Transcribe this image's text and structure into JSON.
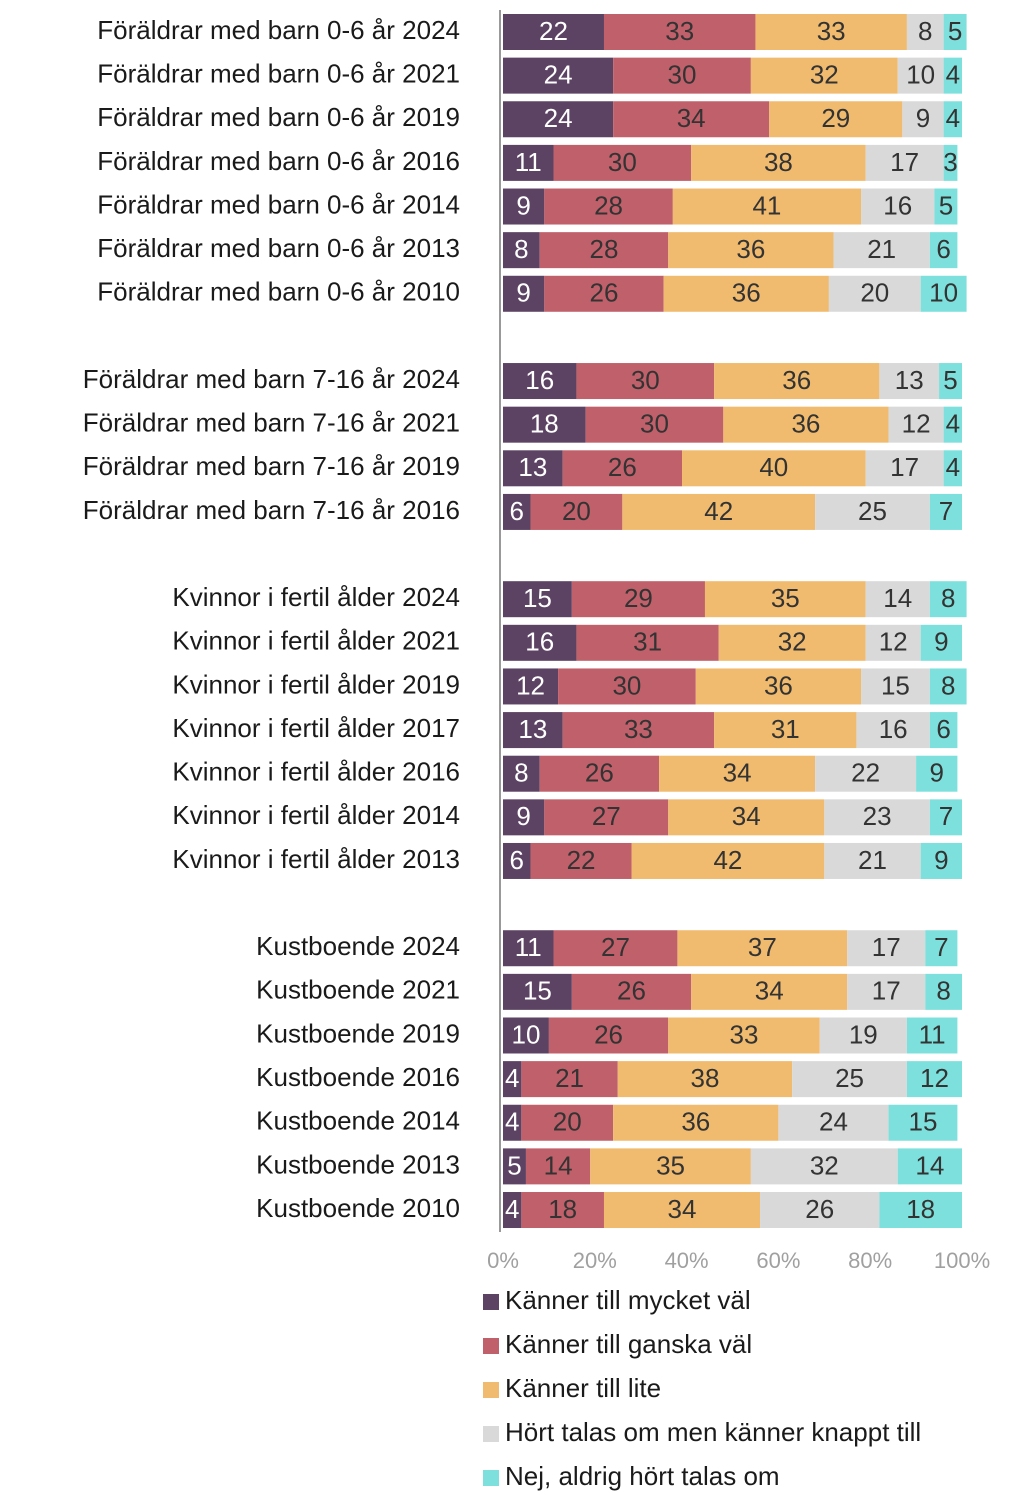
{
  "chart_data": {
    "type": "stacked_barh",
    "categories": [
      "Föräldrar med barn 0-6 år 2024",
      "Föräldrar med barn 0-6 år 2021",
      "Föräldrar med barn 0-6 år 2019",
      "Föräldrar med barn 0-6 år 2016",
      "Föräldrar med barn 0-6 år 2014",
      "Föräldrar med barn 0-6 år 2013",
      "Föräldrar med barn 0-6 år 2010",
      null,
      "Föräldrar med barn 7-16 år 2024",
      "Föräldrar med barn 7-16 år 2021",
      "Föräldrar med barn 7-16 år 2019",
      "Föräldrar med barn 7-16 år 2016",
      null,
      "Kvinnor i fertil ålder 2024",
      "Kvinnor i fertil ålder 2021",
      "Kvinnor i fertil ålder 2019",
      "Kvinnor i fertil ålder 2017",
      "Kvinnor i fertil ålder 2016",
      "Kvinnor i fertil ålder 2014",
      "Kvinnor i fertil ålder 2013",
      null,
      "Kustboende 2024",
      "Kustboende 2021",
      "Kustboende 2019",
      "Kustboende 2016",
      "Kustboende 2014",
      "Kustboende 2013",
      "Kustboende 2010"
    ],
    "series": [
      {
        "name": "Känner till mycket väl",
        "color": "#5c4363",
        "label_color": "#ffffff",
        "values": [
          22,
          24,
          24,
          11,
          9,
          8,
          9,
          null,
          16,
          18,
          13,
          6,
          null,
          15,
          16,
          12,
          13,
          8,
          9,
          6,
          null,
          11,
          15,
          10,
          4,
          4,
          5,
          4
        ]
      },
      {
        "name": "Känner till ganska väl",
        "color": "#c0606a",
        "label_color": "#333333",
        "values": [
          33,
          30,
          34,
          30,
          28,
          28,
          26,
          null,
          30,
          30,
          26,
          20,
          null,
          29,
          31,
          30,
          33,
          26,
          27,
          22,
          null,
          27,
          26,
          26,
          21,
          20,
          14,
          18
        ]
      },
      {
        "name": "Känner till lite",
        "color": "#f0bb6e",
        "label_color": "#333333",
        "values": [
          33,
          32,
          29,
          38,
          41,
          36,
          36,
          null,
          36,
          36,
          40,
          42,
          null,
          35,
          32,
          36,
          31,
          34,
          34,
          42,
          null,
          37,
          34,
          33,
          38,
          36,
          35,
          34
        ]
      },
      {
        "name": "Hört talas om men känner knappt till",
        "color": "#d9d9d9",
        "label_color": "#333333",
        "values": [
          8,
          10,
          9,
          17,
          16,
          21,
          20,
          null,
          13,
          12,
          17,
          25,
          null,
          14,
          12,
          15,
          16,
          22,
          23,
          21,
          null,
          17,
          17,
          19,
          25,
          24,
          32,
          26
        ]
      },
      {
        "name": "Nej, aldrig hört talas om",
        "color": "#7ee0dc",
        "label_color": "#333333",
        "values": [
          5,
          4,
          4,
          3,
          5,
          6,
          10,
          null,
          5,
          4,
          4,
          7,
          null,
          8,
          9,
          8,
          6,
          9,
          7,
          9,
          null,
          7,
          8,
          11,
          12,
          15,
          14,
          18
        ]
      }
    ],
    "xlim": [
      0,
      100
    ],
    "xticks": [
      {
        "value": 0,
        "label": "0%"
      },
      {
        "value": 20,
        "label": "20%"
      },
      {
        "value": 40,
        "label": "40%"
      },
      {
        "value": 60,
        "label": "60%"
      },
      {
        "value": 80,
        "label": "80%"
      },
      {
        "value": 100,
        "label": "100%"
      }
    ],
    "legend": "bottom"
  }
}
